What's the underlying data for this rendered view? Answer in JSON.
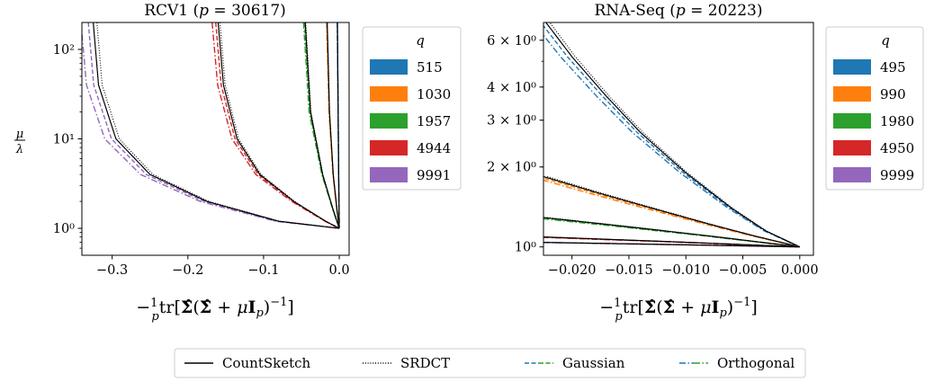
{
  "chart_data": [
    {
      "type": "line",
      "title": "RCV1 (p = 30617)",
      "xlabel": "−(1/p) tr[Σ̂(Σ̂ + μI_p)⁻¹]",
      "ylabel": "μ/λ",
      "yscale": "log",
      "xlim": [
        -0.34,
        0.013
      ],
      "ylim": [
        0.5,
        200
      ],
      "xticks": [
        -0.3,
        -0.2,
        -0.1,
        0.0
      ],
      "xtick_labels": [
        "−0.3",
        "−0.2",
        "−0.1",
        "0.0"
      ],
      "yticks": [
        1,
        10,
        100
      ],
      "ytick_labels": [
        "10⁰",
        "10¹",
        "10²"
      ],
      "legend_title": "q",
      "legend_position": "right, outside",
      "series": [
        {
          "name": "515",
          "color": "#1f77b4",
          "x": [
            -0.0025,
            -0.0015,
            -0.0008,
            -0.0003,
            0.0
          ],
          "y": [
            200,
            20,
            4,
            1.6,
            1
          ]
        },
        {
          "name": "1030",
          "color": "#ff7f0e",
          "x": [
            -0.016,
            -0.013,
            -0.008,
            -0.003,
            0.0
          ],
          "y": [
            200,
            20,
            4,
            1.6,
            1
          ]
        },
        {
          "name": "1957",
          "color": "#2ca02c",
          "x": [
            -0.045,
            -0.038,
            -0.022,
            -0.008,
            0.0
          ],
          "y": [
            200,
            20,
            4,
            1.6,
            1
          ]
        },
        {
          "name": "4944",
          "color": "#d62728",
          "x": [
            -0.16,
            -0.153,
            -0.135,
            -0.105,
            -0.06,
            -0.018,
            0.0
          ],
          "y": [
            200,
            40,
            10,
            4,
            2,
            1.2,
            1
          ]
        },
        {
          "name": "9991",
          "color": "#9467bd",
          "x": [
            -0.325,
            -0.318,
            -0.295,
            -0.25,
            -0.175,
            -0.08,
            0.0
          ],
          "y": [
            200,
            40,
            10,
            4,
            2,
            1.2,
            1
          ]
        }
      ]
    },
    {
      "type": "line",
      "title": "RNA-Seq (p = 20223)",
      "xlabel": "−(1/p) tr[Σ̂(Σ̂ + μI_p)⁻¹]",
      "ylabel": "",
      "yscale": "log",
      "xlim": [
        -0.0225,
        0.0012
      ],
      "ylim": [
        0.93,
        7.0
      ],
      "xticks": [
        -0.02,
        -0.015,
        -0.01,
        -0.005,
        0.0
      ],
      "xtick_labels": [
        "−0.020",
        "−0.015",
        "−0.010",
        "−0.005",
        "0.000"
      ],
      "yticks": [
        1,
        2,
        3,
        4,
        6
      ],
      "ytick_labels": [
        "10⁰",
        "2 × 10⁰",
        "3 × 10⁰",
        "4 × 10⁰",
        "6 × 10⁰"
      ],
      "legend_title": "q",
      "legend_position": "right, outside",
      "series": [
        {
          "name": "495",
          "color": "#1f77b4",
          "x": [
            -0.0225,
            -0.02,
            -0.017,
            -0.014,
            -0.01,
            -0.006,
            -0.003,
            0.0
          ],
          "y": [
            7.2,
            5.2,
            3.7,
            2.7,
            1.9,
            1.4,
            1.15,
            1
          ]
        },
        {
          "name": "990",
          "color": "#ff7f0e",
          "x": [
            -0.0225,
            -0.018,
            -0.013,
            -0.008,
            -0.004,
            0.0
          ],
          "y": [
            1.84,
            1.61,
            1.4,
            1.22,
            1.1,
            1
          ]
        },
        {
          "name": "1980",
          "color": "#2ca02c",
          "x": [
            -0.0225,
            -0.015,
            -0.008,
            0.0
          ],
          "y": [
            1.29,
            1.19,
            1.1,
            1
          ]
        },
        {
          "name": "4950",
          "color": "#d62728",
          "x": [
            -0.0225,
            -0.011,
            0.0
          ],
          "y": [
            1.09,
            1.045,
            1
          ]
        },
        {
          "name": "9999",
          "color": "#9467bd",
          "x": [
            -0.0225,
            -0.011,
            0.0
          ],
          "y": [
            1.04,
            1.02,
            1
          ]
        }
      ]
    }
  ],
  "bottom_legend": {
    "items": [
      {
        "label": "CountSketch",
        "style": "solid",
        "colors": [
          "#000000"
        ]
      },
      {
        "label": "SRDCT",
        "style": "dotted",
        "colors": [
          "#000000"
        ]
      },
      {
        "label": "Gaussian",
        "style": "dashed",
        "colors": [
          "#1f77b4",
          "#2ca02c"
        ]
      },
      {
        "label": "Orthogonal",
        "style": "dashdot",
        "colors": [
          "#1f77b4",
          "#2ca02c"
        ]
      }
    ]
  }
}
